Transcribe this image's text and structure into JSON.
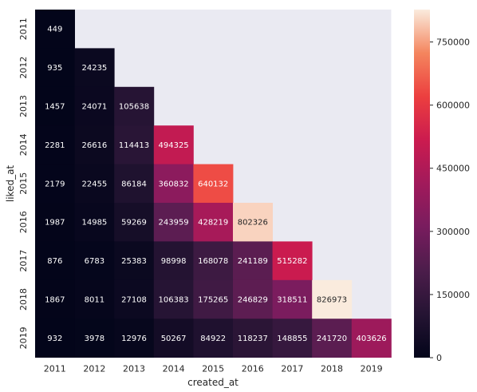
{
  "chart_data": {
    "type": "heatmap",
    "title": "",
    "xlabel": "created_at",
    "ylabel": "liked_at",
    "x": [
      "2011",
      "2012",
      "2013",
      "2014",
      "2015",
      "2016",
      "2017",
      "2018",
      "2019"
    ],
    "y": [
      "2011",
      "2012",
      "2013",
      "2014",
      "2015",
      "2016",
      "2017",
      "2018",
      "2019"
    ],
    "values": [
      [
        449,
        null,
        null,
        null,
        null,
        null,
        null,
        null,
        null
      ],
      [
        935,
        24235,
        null,
        null,
        null,
        null,
        null,
        null,
        null
      ],
      [
        1457,
        24071,
        105638,
        null,
        null,
        null,
        null,
        null,
        null
      ],
      [
        2281,
        26616,
        114413,
        494325,
        null,
        null,
        null,
        null,
        null
      ],
      [
        2179,
        22455,
        86184,
        360832,
        640132,
        null,
        null,
        null,
        null
      ],
      [
        1987,
        14985,
        59269,
        243959,
        428219,
        802326,
        null,
        null,
        null
      ],
      [
        876,
        6783,
        25383,
        98998,
        168078,
        241189,
        515282,
        null,
        null
      ],
      [
        1867,
        8011,
        27108,
        106383,
        175265,
        246829,
        318511,
        826973,
        null
      ],
      [
        932,
        3978,
        12976,
        50267,
        84922,
        118237,
        148855,
        241720,
        403626
      ]
    ],
    "colorbar": {
      "min": 0,
      "max": 826973,
      "ticks": [
        0,
        150000,
        300000,
        450000,
        600000,
        750000
      ],
      "colormap": "rocket"
    },
    "masked_color": "#eaeaf2",
    "grid": false,
    "legend": "colorbar-right"
  }
}
